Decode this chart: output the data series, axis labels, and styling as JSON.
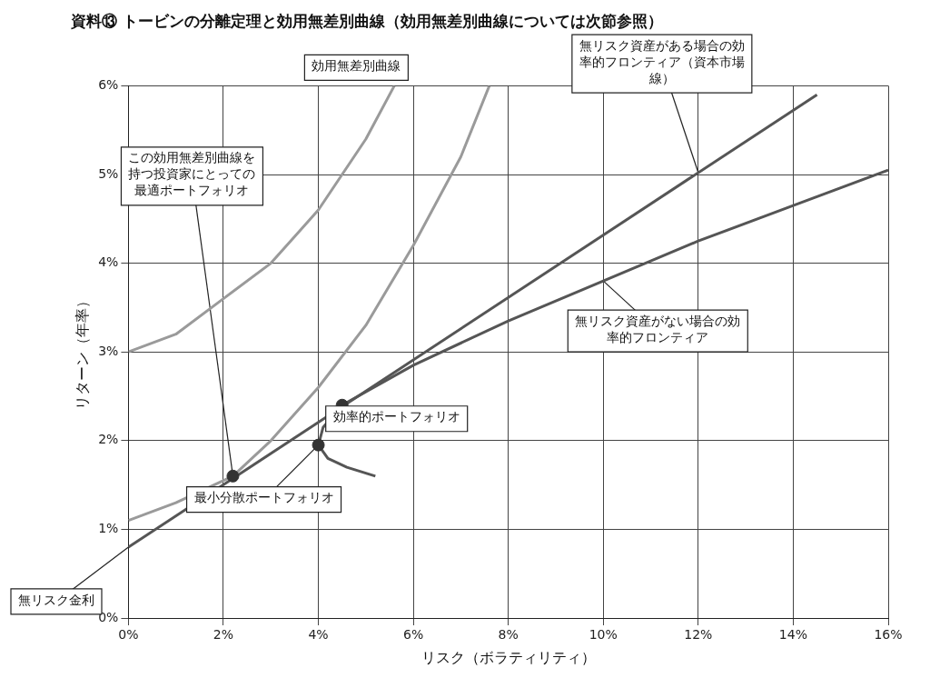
{
  "chart_data": {
    "type": "line",
    "title": "資料⑬ トービンの分離定理と効用無差別曲線（効用無差別曲線については次節参照）",
    "xlabel": "リスク（ボラティリティ）",
    "ylabel": "リターン（年率）",
    "xlim": [
      0,
      16
    ],
    "ylim": [
      0,
      6
    ],
    "xticks": [
      {
        "value": 0,
        "label": "0%"
      },
      {
        "value": 2,
        "label": "2%"
      },
      {
        "value": 4,
        "label": "4%"
      },
      {
        "value": 6,
        "label": "6%"
      },
      {
        "value": 8,
        "label": "8%"
      },
      {
        "value": 10,
        "label": "10%"
      },
      {
        "value": 12,
        "label": "12%"
      },
      {
        "value": 14,
        "label": "14%"
      },
      {
        "value": 16,
        "label": "16%"
      }
    ],
    "yticks": [
      {
        "value": 0,
        "label": "0%"
      },
      {
        "value": 1,
        "label": "1%"
      },
      {
        "value": 2,
        "label": "2%"
      },
      {
        "value": 3,
        "label": "3%"
      },
      {
        "value": 4,
        "label": "4%"
      },
      {
        "value": 5,
        "label": "5%"
      },
      {
        "value": 6,
        "label": "6%"
      }
    ],
    "grid": true,
    "legend": false,
    "marker": "none",
    "line_style": "solid",
    "series": [
      {
        "color": "#9a9a9a",
        "x": [
          0,
          1,
          2,
          3,
          4,
          5,
          5.6
        ],
        "values": [
          3.0,
          3.2,
          3.6,
          4.0,
          4.6,
          5.4,
          6.0
        ]
      },
      {
        "color": "#9a9a9a",
        "x": [
          0,
          1,
          2.2,
          3,
          4,
          5,
          6,
          7,
          7.6
        ],
        "values": [
          1.1,
          1.3,
          1.6,
          2.0,
          2.6,
          3.3,
          4.2,
          5.2,
          6.0
        ]
      },
      {
        "color": "#555555",
        "x": [
          0,
          14.5
        ],
        "values": [
          0.8,
          5.9
        ]
      },
      {
        "color": "#555555",
        "x": [
          5.2,
          4.6,
          4.2,
          4.0,
          4.1,
          4.5,
          6,
          8,
          10,
          12,
          14,
          16
        ],
        "values": [
          1.6,
          1.7,
          1.8,
          1.95,
          2.15,
          2.4,
          2.85,
          3.35,
          3.8,
          4.25,
          4.65,
          5.05
        ]
      },
      {
        "type": "scatter",
        "marker": "circle",
        "color": "#333333",
        "x": [
          2.2,
          4.5,
          4.0
        ],
        "values": [
          1.6,
          2.4,
          1.95
        ]
      }
    ],
    "annotations": [
      "効用無差別曲線",
      {
        "text": "無リスク資産がある場合の効率的フロンティア（資本市場線）",
        "x": 12,
        "y": 5.02
      },
      {
        "text": "この効用無差別曲線を持つ投資家にとっての最適ポートフォリオ",
        "x": 2.2,
        "y": 1.6
      },
      {
        "text": "無リスク資産がない場合の効率的フロンティア",
        "x": 10,
        "y": 3.8
      },
      {
        "text": "効率的ポートフォリオ",
        "x": 4.5,
        "y": 2.4
      },
      {
        "text": "最小分散ポートフォリオ",
        "x": 4.0,
        "y": 1.95
      },
      {
        "text": "無リスク金利",
        "x": 0,
        "y": 0.8
      }
    ]
  }
}
